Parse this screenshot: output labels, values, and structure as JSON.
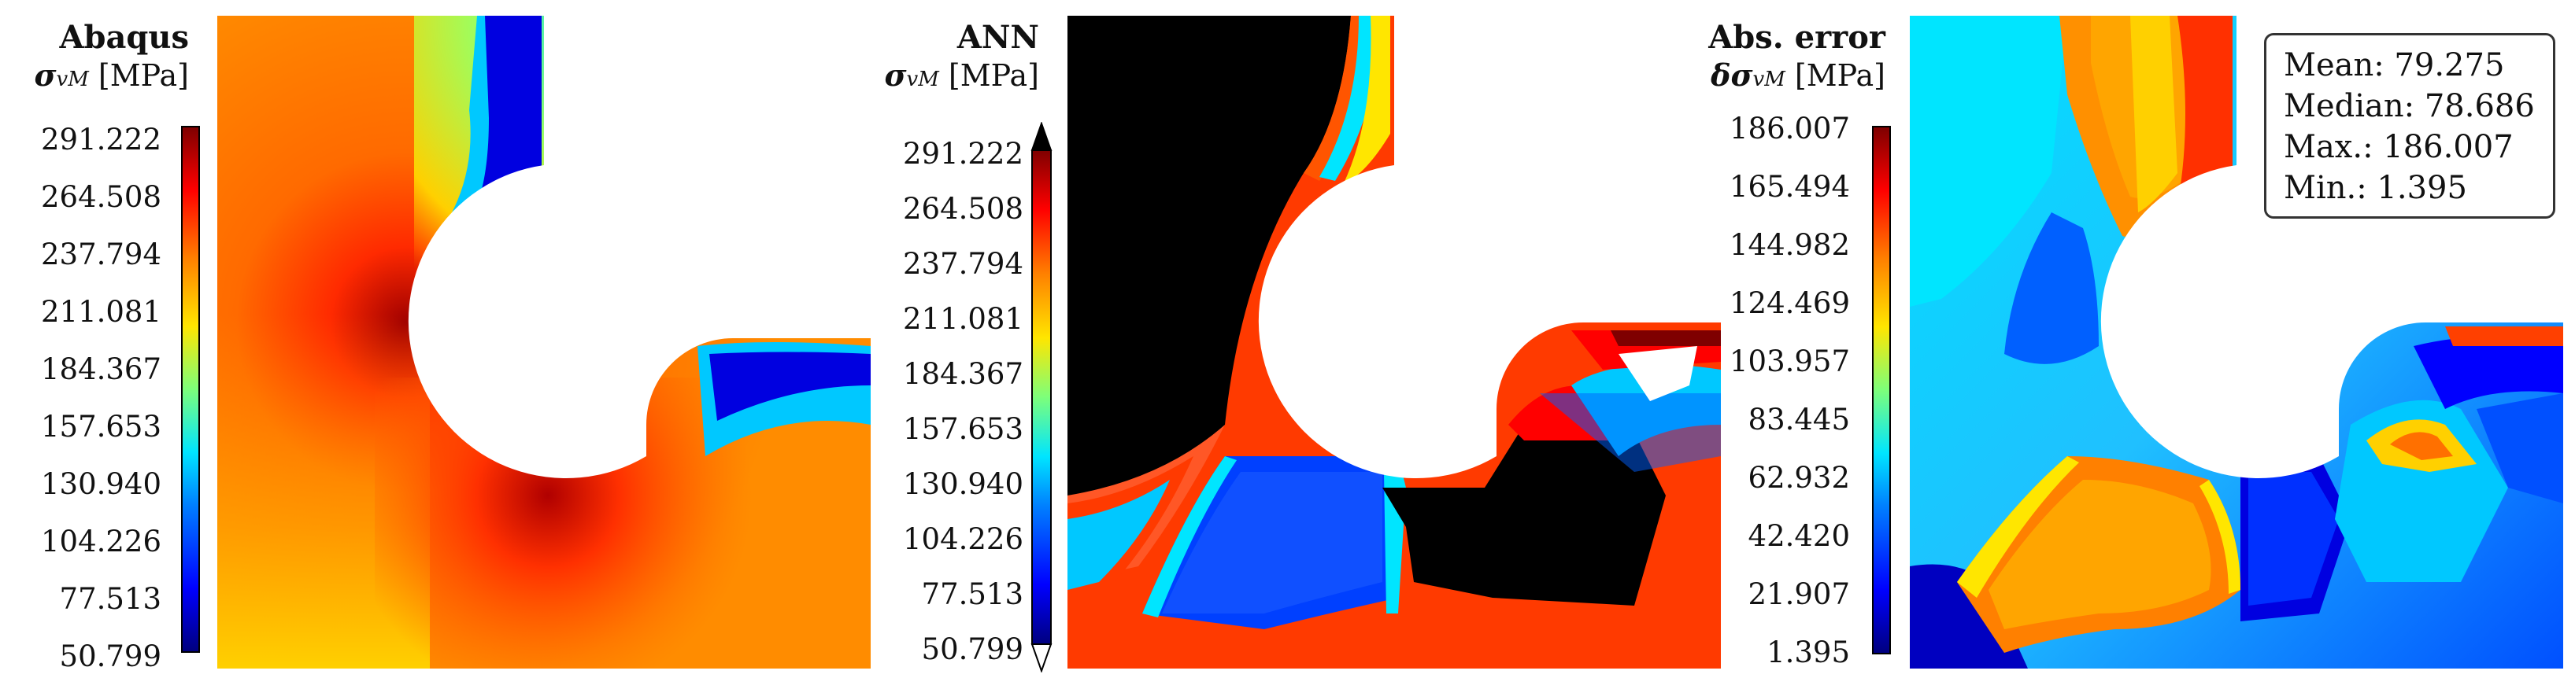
{
  "chart_data": [
    {
      "type": "heatmap",
      "title": "Abaqus",
      "colorbar_label": "σvM [MPa]",
      "colorbar_ticks": [
        "291.222",
        "264.508",
        "237.794",
        "211.081",
        "184.367",
        "157.653",
        "130.940",
        "104.226",
        "77.513",
        "50.799"
      ],
      "colormap": "jet",
      "vmin": 50.799,
      "vmax": 291.222
    },
    {
      "type": "heatmap",
      "title": "ANN",
      "colorbar_label": "σvM [MPa]",
      "colorbar_ticks": [
        "291.222",
        "264.508",
        "237.794",
        "211.081",
        "184.367",
        "157.653",
        "130.940",
        "104.226",
        "77.513",
        "50.799"
      ],
      "colormap": "jet",
      "vmin": 50.799,
      "vmax": 291.222,
      "colorbar_extend": "both"
    },
    {
      "type": "heatmap",
      "title": "Abs. error",
      "colorbar_label": "δσvM [MPa]",
      "colorbar_ticks": [
        "186.007",
        "165.494",
        "144.982",
        "124.469",
        "103.957",
        "83.445",
        "62.932",
        "42.420",
        "21.907",
        "1.395"
      ],
      "colormap": "jet",
      "vmin": 1.395,
      "vmax": 186.007,
      "stats": {
        "mean": "Mean: 79.275",
        "median": "Median: 78.686",
        "max": "Max.: 186.007",
        "min": "Min.: 1.395"
      }
    }
  ],
  "labels": {
    "p1_title": "Abaqus",
    "p2_title": "ANN",
    "p3_title": "Abs. error",
    "sigma": "σ",
    "delta_sigma": "δσ",
    "sub": "vM",
    "unit": "[MPa]"
  },
  "colors": {
    "high": "#7f0000",
    "low": "#00007f",
    "saturated": "#000000"
  }
}
